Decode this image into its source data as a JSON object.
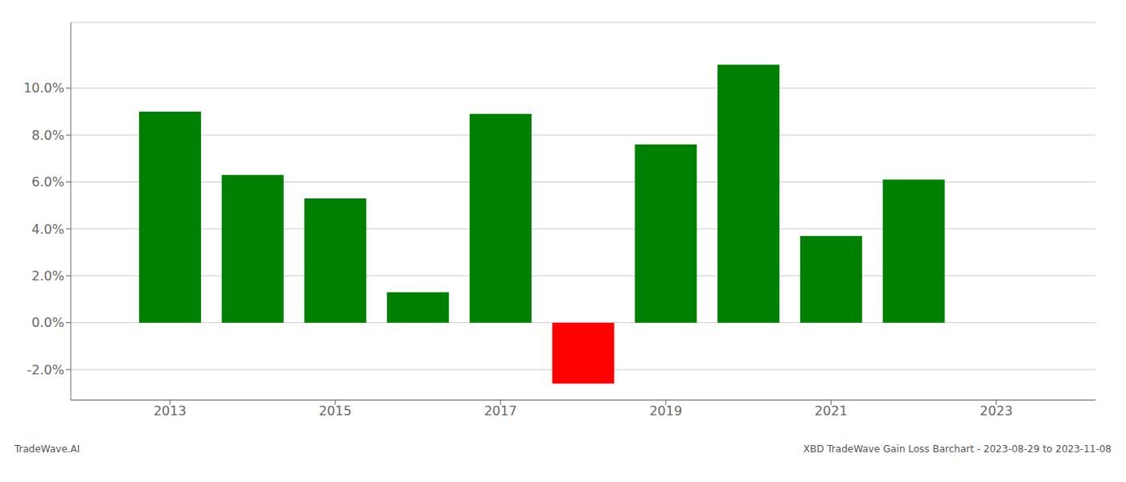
{
  "chart_data": {
    "type": "bar",
    "x": [
      2013,
      2014,
      2015,
      2016,
      2017,
      2018,
      2019,
      2020,
      2021,
      2022
    ],
    "values": [
      0.09,
      0.063,
      0.053,
      0.013,
      0.089,
      -0.026,
      0.076,
      0.11,
      0.037,
      0.061
    ],
    "colors": [
      "#008000",
      "#008000",
      "#008000",
      "#008000",
      "#008000",
      "#ff0000",
      "#008000",
      "#008000",
      "#008000",
      "#008000"
    ],
    "xlim": [
      2011.8,
      2024.2
    ],
    "xticks": [
      2013,
      2015,
      2017,
      2019,
      2021,
      2023
    ],
    "ylim": [
      -0.033,
      0.128
    ],
    "yticks": [
      {
        "value": -0.02,
        "label": "-2.0%"
      },
      {
        "value": 0.0,
        "label": "0.0%"
      },
      {
        "value": 0.02,
        "label": "2.0%"
      },
      {
        "value": 0.04,
        "label": "4.0%"
      },
      {
        "value": 0.06,
        "label": "6.0%"
      },
      {
        "value": 0.08,
        "label": "8.0%"
      },
      {
        "value": 0.1,
        "label": "10.0%"
      }
    ],
    "grid": true,
    "annotations": [
      "TradeWave.AI",
      "XBD TradeWave Gain Loss Barchart - 2023-08-29 to 2023-11-08"
    ]
  }
}
